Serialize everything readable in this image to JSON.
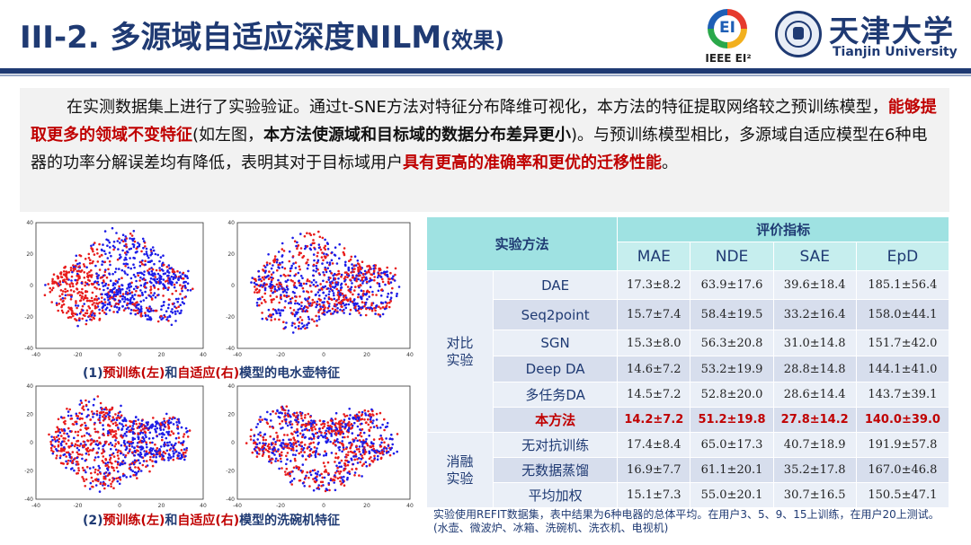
{
  "header": {
    "title_main": "III-2. 多源域自适应深度NILM",
    "title_sub": "(效果)",
    "ieee_logo_text": "EI",
    "ieee_caption": "IEEE EI²",
    "university_cn": "天津大学",
    "university_en": "Tianjin University"
  },
  "intro": {
    "s1": "在实测数据集上进行了实验验证。通过t-SNE方法对特征分布降维可视化，本方法的特征提取网络较之预训练模型，",
    "h1": "能够提取更多的领域不变特征",
    "s2": "(如左图，",
    "b1": "本方法使源域和目标域的数据分布差异更小",
    "s3": ")。与预训练模型相比，多源域自适应模型在6种电器的功率分解误差均有降低，表明其对于目标域用户",
    "h2": "具有更高的准确率和更优的迁移性能",
    "s4": "。"
  },
  "plots": {
    "y_ticks": [
      "40",
      "20",
      "0",
      "-20",
      "-40"
    ],
    "x_ticks": [
      "-40",
      "-20",
      "0",
      "20",
      "40"
    ],
    "series_colors": {
      "target": "#e81c1c",
      "source": "#1c1ce8"
    }
  },
  "captions": {
    "kettle": {
      "num": "(1)",
      "pre": "预训练(左)",
      "and": "和",
      "ada": "自适应(右)",
      "rest": "模型的电水壶特征"
    },
    "dishwasher": {
      "num": "(2)",
      "pre": "预训练(左)",
      "and": "和",
      "ada": "自适应(右)",
      "rest": "模型的洗碗机特征"
    }
  },
  "table": {
    "method_header": "实验方法",
    "metric_header": "评价指标",
    "columns": [
      "MAE",
      "NDE",
      "SAE",
      "EpD"
    ],
    "group1": "对比实验",
    "group2": "消融实验",
    "rows": [
      {
        "method": "DAE",
        "values": [
          "17.3±8.2",
          "63.9±17.6",
          "39.6±18.4",
          "185.1±56.4"
        ]
      },
      {
        "method": "Seq2point",
        "values": [
          "15.7±7.4",
          "58.4±19.5",
          "33.2±16.4",
          "158.0±44.1"
        ]
      },
      {
        "method": "SGN",
        "values": [
          "15.3±8.0",
          "56.3±20.8",
          "31.0±14.8",
          "151.7±42.0"
        ]
      },
      {
        "method": "Deep DA",
        "values": [
          "14.6±7.2",
          "53.2±19.9",
          "28.8±14.8",
          "144.1±41.0"
        ]
      },
      {
        "method": "多任务DA",
        "values": [
          "14.5±7.2",
          "52.8±20.0",
          "28.6±14.4",
          "143.7±39.1"
        ]
      },
      {
        "method": "本方法",
        "values": [
          "14.2±7.2",
          "51.2±19.8",
          "27.8±14.2",
          "140.0±39.0"
        ]
      },
      {
        "method": "无对抗训练",
        "values": [
          "17.4±8.4",
          "65.0±17.3",
          "40.7±18.9",
          "191.9±57.8"
        ]
      },
      {
        "method": "无数据蒸馏",
        "values": [
          "16.9±7.7",
          "61.1±20.1",
          "35.2±17.8",
          "167.0±46.8"
        ]
      },
      {
        "method": "平均加权",
        "values": [
          "15.1±7.3",
          "55.0±20.1",
          "30.7±16.5",
          "150.5±47.1"
        ]
      }
    ]
  },
  "note": "实验使用REFIT数据集，表中结果为6种电器的总体平均。在用户3、5、9、15上训练，在用户20上测试。(水壶、微波炉、冰箱、洗碗机、洗衣机、电视机)"
}
